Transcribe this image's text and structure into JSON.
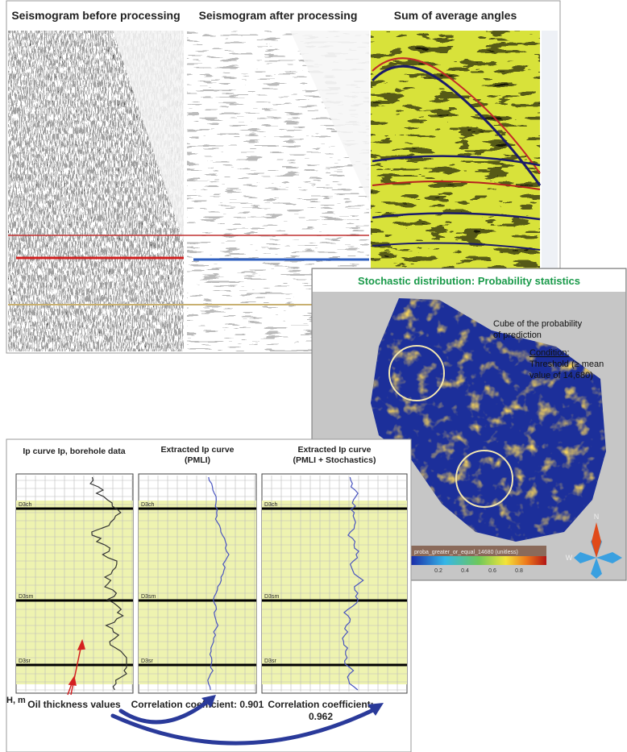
{
  "seismic": {
    "titles": [
      "Seismogram before processing",
      "Seismogram after processing",
      "Sum of average angles"
    ]
  },
  "probability": {
    "title": "Stochastic distribution: Probability statistics",
    "cube_label": [
      "Cube of the probability",
      "of prediction"
    ],
    "condition_label": "Condition:",
    "condition_text": [
      "Threshold (≥ mean",
      "value of 14,680)"
    ],
    "colorbar_label": "proba_greater_or_equal_14680 (unitless)",
    "colorbar_ticks": [
      "0.2",
      "0.4",
      "0.6",
      "0.8"
    ],
    "compass": [
      "N",
      "W"
    ]
  },
  "logs": {
    "titles": [
      [
        "Ip curve Ip, borehole data"
      ],
      [
        "Extracted Ip curve",
        "(PMLI)"
      ],
      [
        "Extracted Ip curve",
        "(PMLI + Stochastics)"
      ]
    ],
    "horizons": [
      "D3ch",
      "D3sm",
      "D3sr"
    ],
    "depth_label": "H, m",
    "oil_label": "Oil thickness values",
    "correlation": [
      [
        "Correlation coefficient: 0.901"
      ],
      [
        "Correlation coefficient:",
        "0.962"
      ]
    ]
  }
}
